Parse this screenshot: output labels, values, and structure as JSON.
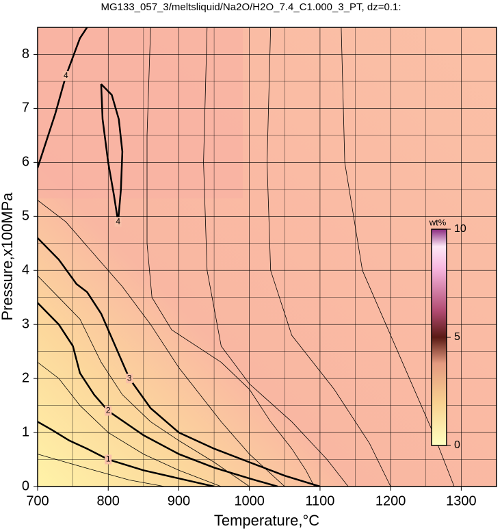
{
  "chart_data": {
    "type": "contour",
    "title": "MG133_057_3/meltsliquid/Na2O/H2O_7.4_C1.000_3_PT, dz=0.1:",
    "xlabel": "Temperature,°C",
    "ylabel": "Pressure,x100MPa",
    "xlim": [
      700,
      1350
    ],
    "ylim": [
      0,
      8.5
    ],
    "xticks": [
      700,
      800,
      900,
      1000,
      1100,
      1200,
      1300
    ],
    "yticks": [
      0,
      1,
      2,
      3,
      4,
      5,
      6,
      7,
      8
    ],
    "grid": true,
    "colorbar": {
      "label": "wt%",
      "lim": [
        0,
        10
      ],
      "ticks": [
        0,
        5,
        10
      ]
    },
    "contours": [
      {
        "level": 1,
        "x": [
          700,
          720,
          745,
          770,
          800,
          850,
          900,
          950
        ],
        "y": [
          1.2,
          1.05,
          0.85,
          0.7,
          0.5,
          0.3,
          0.15,
          0
        ]
      },
      {
        "level": 2,
        "x": [
          700,
          730,
          750,
          760,
          780,
          800,
          850,
          900,
          950,
          1000,
          1040
        ],
        "y": [
          3.4,
          3.0,
          2.6,
          2.1,
          1.7,
          1.4,
          0.95,
          0.6,
          0.35,
          0.15,
          0
        ]
      },
      {
        "level": 3,
        "x": [
          700,
          730,
          755,
          770,
          790,
          810,
          830,
          860,
          900,
          950,
          1000,
          1050,
          1100
        ],
        "y": [
          4.6,
          4.2,
          3.75,
          3.6,
          3.2,
          2.6,
          2.0,
          1.45,
          1.0,
          0.7,
          0.45,
          0.2,
          0
        ]
      },
      {
        "level": 4,
        "x": [
          790,
          805,
          815,
          820,
          818,
          814,
          808,
          800,
          792,
          790
        ],
        "y": [
          7.45,
          7.25,
          6.8,
          6.2,
          5.5,
          4.9,
          5.4,
          6.0,
          6.8,
          7.45
        ]
      },
      {
        "level": 4,
        "x": [
          700,
          710,
          725,
          740,
          760,
          770
        ],
        "y": [
          5.9,
          6.3,
          6.9,
          7.6,
          8.3,
          8.5
        ]
      },
      {
        "level": 3.5,
        "x": [
          700,
          740,
          780,
          820,
          860,
          900,
          960,
          1000,
          1050
        ],
        "y": [
          5.3,
          4.9,
          4.3,
          3.7,
          3.0,
          2.2,
          1.2,
          0.6,
          0
        ]
      },
      {
        "level": 3.8,
        "x": [
          860,
          855,
          855,
          862,
          890,
          960,
          1000,
          1030,
          1060,
          1080,
          1092
        ],
        "y": [
          8.5,
          6.5,
          4.5,
          3.5,
          2.9,
          2.3,
          1.8,
          1.2,
          0.7,
          0.3,
          0
        ]
      },
      {
        "level": 3.9,
        "x": [
          940,
          935,
          940,
          960,
          1000,
          1060,
          1110,
          1140
        ],
        "y": [
          8.5,
          6.0,
          4.0,
          2.6,
          1.9,
          1.2,
          0.5,
          0
        ]
      },
      {
        "level": 3.95,
        "x": [
          1030,
          1025,
          1030,
          1060,
          1120,
          1170,
          1200
        ],
        "y": [
          8.5,
          6.0,
          4.0,
          2.8,
          1.8,
          0.8,
          0
        ]
      },
      {
        "level": 3.97,
        "x": [
          1130,
          1135,
          1160,
          1220,
          1260,
          1290
        ],
        "y": [
          8.5,
          6.0,
          4.0,
          2.2,
          1.0,
          0
        ]
      },
      {
        "level": 2.5,
        "x": [
          700,
          730,
          760,
          790,
          820,
          860,
          900,
          950,
          1000
        ],
        "y": [
          3.9,
          3.5,
          3.1,
          2.3,
          1.7,
          1.2,
          0.85,
          0.45,
          0
        ]
      },
      {
        "level": 1.5,
        "x": [
          700,
          730,
          760,
          800,
          850,
          900,
          960
        ],
        "y": [
          2.3,
          2.0,
          1.5,
          1.0,
          0.6,
          0.3,
          0
        ]
      },
      {
        "level": 0.5,
        "x": [
          700,
          740,
          780,
          830,
          880
        ],
        "y": [
          0.6,
          0.45,
          0.3,
          0.12,
          0
        ]
      }
    ]
  }
}
